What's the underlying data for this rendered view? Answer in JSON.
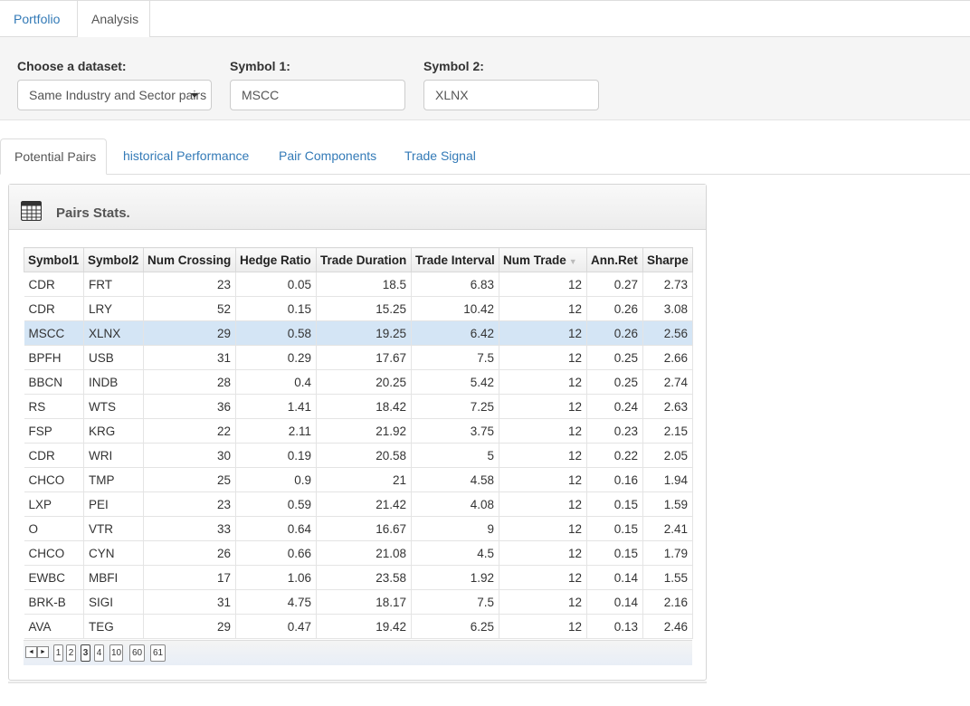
{
  "topnav": {
    "tabs": [
      "Portfolio",
      "Analysis"
    ],
    "active": "Analysis"
  },
  "controls": {
    "dataset": {
      "label": "Choose a dataset:",
      "value": "Same Industry and Sector pairs"
    },
    "symbol1": {
      "label": "Symbol 1:",
      "value": "MSCC"
    },
    "symbol2": {
      "label": "Symbol 2:",
      "value": "XLNX"
    }
  },
  "subnav": {
    "tabs": [
      "Potential Pairs",
      "historical Performance",
      "Pair Components",
      "Trade Signal"
    ],
    "active": "Potential Pairs"
  },
  "box": {
    "title": "Pairs Stats.",
    "icon": "table-icon"
  },
  "table": {
    "columns": [
      "Symbol1",
      "Symbol2",
      "Num Crossing",
      "Hedge Ratio",
      "Trade Duration",
      "Trade Interval",
      "Num Trade",
      "Ann.Ret",
      "Sharpe"
    ],
    "sorted_column": "Num Trade",
    "selected_row": 2,
    "rows": [
      [
        "CDR",
        "FRT",
        "23",
        "0.05",
        "18.5",
        "6.83",
        "12",
        "0.27",
        "2.73"
      ],
      [
        "CDR",
        "LRY",
        "52",
        "0.15",
        "15.25",
        "10.42",
        "12",
        "0.26",
        "3.08"
      ],
      [
        "MSCC",
        "XLNX",
        "29",
        "0.58",
        "19.25",
        "6.42",
        "12",
        "0.26",
        "2.56"
      ],
      [
        "BPFH",
        "USB",
        "31",
        "0.29",
        "17.67",
        "7.5",
        "12",
        "0.25",
        "2.66"
      ],
      [
        "BBCN",
        "INDB",
        "28",
        "0.4",
        "20.25",
        "5.42",
        "12",
        "0.25",
        "2.74"
      ],
      [
        "RS",
        "WTS",
        "36",
        "1.41",
        "18.42",
        "7.25",
        "12",
        "0.24",
        "2.63"
      ],
      [
        "FSP",
        "KRG",
        "22",
        "2.11",
        "21.92",
        "3.75",
        "12",
        "0.23",
        "2.15"
      ],
      [
        "CDR",
        "WRI",
        "30",
        "0.19",
        "20.58",
        "5",
        "12",
        "0.22",
        "2.05"
      ],
      [
        "CHCO",
        "TMP",
        "25",
        "0.9",
        "21",
        "4.58",
        "12",
        "0.16",
        "1.94"
      ],
      [
        "LXP",
        "PEI",
        "23",
        "0.59",
        "21.42",
        "4.08",
        "12",
        "0.15",
        "1.59"
      ],
      [
        "O",
        "VTR",
        "33",
        "0.64",
        "16.67",
        "9",
        "12",
        "0.15",
        "2.41"
      ],
      [
        "CHCO",
        "CYN",
        "26",
        "0.66",
        "21.08",
        "4.5",
        "12",
        "0.15",
        "1.79"
      ],
      [
        "EWBC",
        "MBFI",
        "17",
        "1.06",
        "23.58",
        "1.92",
        "12",
        "0.14",
        "1.55"
      ],
      [
        "BRK-B",
        "SIGI",
        "31",
        "4.75",
        "18.17",
        "7.5",
        "12",
        "0.14",
        "2.16"
      ],
      [
        "AVA",
        "TEG",
        "29",
        "0.47",
        "19.42",
        "6.25",
        "12",
        "0.13",
        "2.46"
      ]
    ]
  },
  "pager": {
    "prev": "◄",
    "next": "►",
    "pages": [
      "1",
      "2",
      "3",
      "4",
      "10",
      "60",
      "61"
    ],
    "current": "3"
  }
}
